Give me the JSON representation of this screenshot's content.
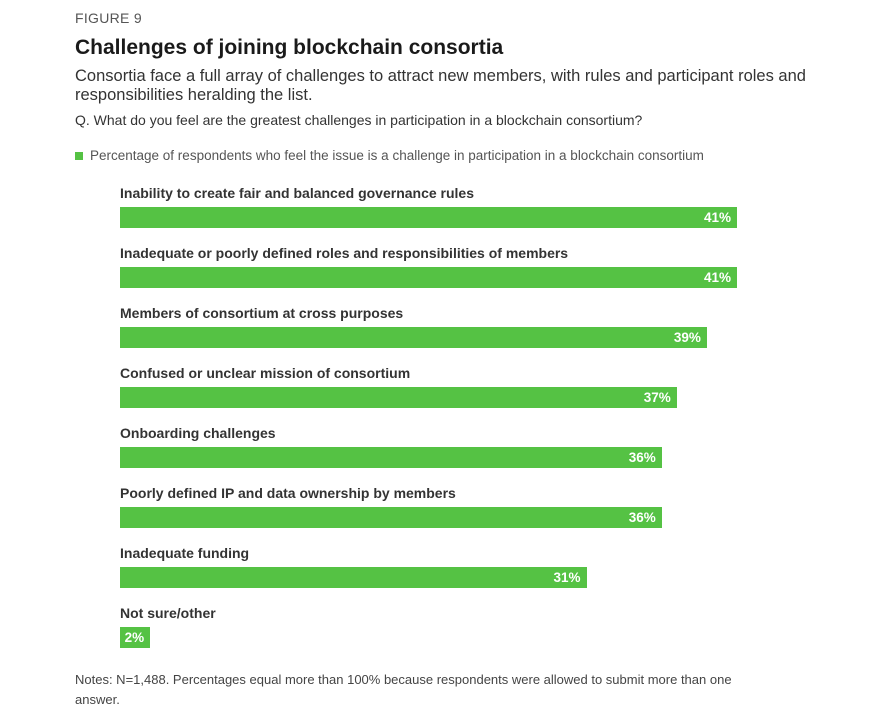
{
  "figure_label": "FIGURE 9",
  "colors": {
    "bar": "#55c244",
    "value_text": "#ffffff"
  },
  "notes": "Notes: N=1,488. Percentages equal more than 100% because respondents were allowed to submit more than one answer.",
  "chart_data": {
    "type": "bar",
    "orientation": "horizontal",
    "title": "Challenges of joining blockchain consortia",
    "subtitle": "Consortia face a full array of challenges to attract new members, with rules and participant roles and responsibilities heralding the list.",
    "question": "Q. What do you feel are the greatest challenges in participation in a blockchain consortium?",
    "legend": "Percentage of respondents who feel the issue is a challenge in participation in a blockchain consortium",
    "unit": "%",
    "categories": [
      "Inability to create fair and balanced governance rules",
      "Inadequate or poorly defined roles and responsibilities of members",
      "Members of consortium at cross purposes",
      "Confused or unclear mission of consortium",
      "Onboarding challenges",
      "Poorly defined IP and data ownership by members",
      "Inadequate funding",
      "Not sure/other"
    ],
    "values": [
      41,
      41,
      39,
      37,
      36,
      36,
      31,
      2
    ],
    "value_labels": [
      "41%",
      "41%",
      "39%",
      "37%",
      "36%",
      "36%",
      "31%",
      "2%"
    ],
    "xlim": [
      0,
      100
    ]
  }
}
